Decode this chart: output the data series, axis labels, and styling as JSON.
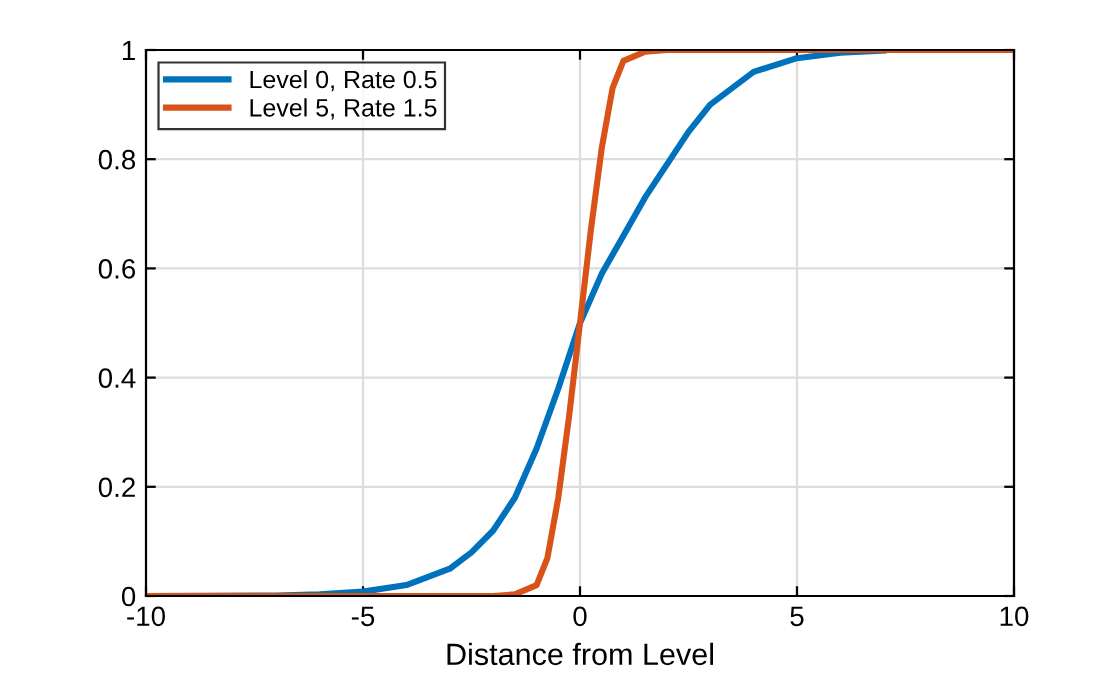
{
  "chart_data": {
    "type": "line",
    "xlabel": "Distance from Level",
    "xlim": [
      -10,
      10
    ],
    "ylim": [
      0,
      1
    ],
    "xticks": [
      -10,
      -5,
      0,
      5,
      10
    ],
    "yticks": [
      0,
      0.2,
      0.4,
      0.6,
      0.8,
      1
    ],
    "grid": true,
    "legend": "top left",
    "marker": "none",
    "line_style": "solid",
    "series": [
      {
        "name": "Level 0, Rate 0.5",
        "color": "#0072bd",
        "x": [
          -10,
          -7,
          -6,
          -5,
          -4,
          -3,
          -2.5,
          -2,
          -1.5,
          -1,
          -0.5,
          0,
          0.5,
          1,
          1.5,
          2,
          2.5,
          3,
          4,
          5,
          6,
          7
        ],
        "values": [
          0,
          0.001,
          0.003,
          0.008,
          0.02,
          0.05,
          0.08,
          0.12,
          0.18,
          0.27,
          0.38,
          0.5,
          0.59,
          0.66,
          0.73,
          0.79,
          0.85,
          0.9,
          0.96,
          0.985,
          0.995,
          0.999
        ]
      },
      {
        "name": "Level 5, Rate 1.5",
        "color": "#d95319",
        "x": [
          -10,
          -2,
          -1.5,
          -1,
          -0.75,
          -0.5,
          -0.25,
          0,
          0.25,
          0.5,
          0.75,
          1,
          1.5,
          2,
          10
        ],
        "values": [
          0,
          0,
          0.003,
          0.02,
          0.07,
          0.18,
          0.33,
          0.5,
          0.67,
          0.82,
          0.93,
          0.98,
          0.997,
          1,
          1
        ]
      }
    ]
  }
}
